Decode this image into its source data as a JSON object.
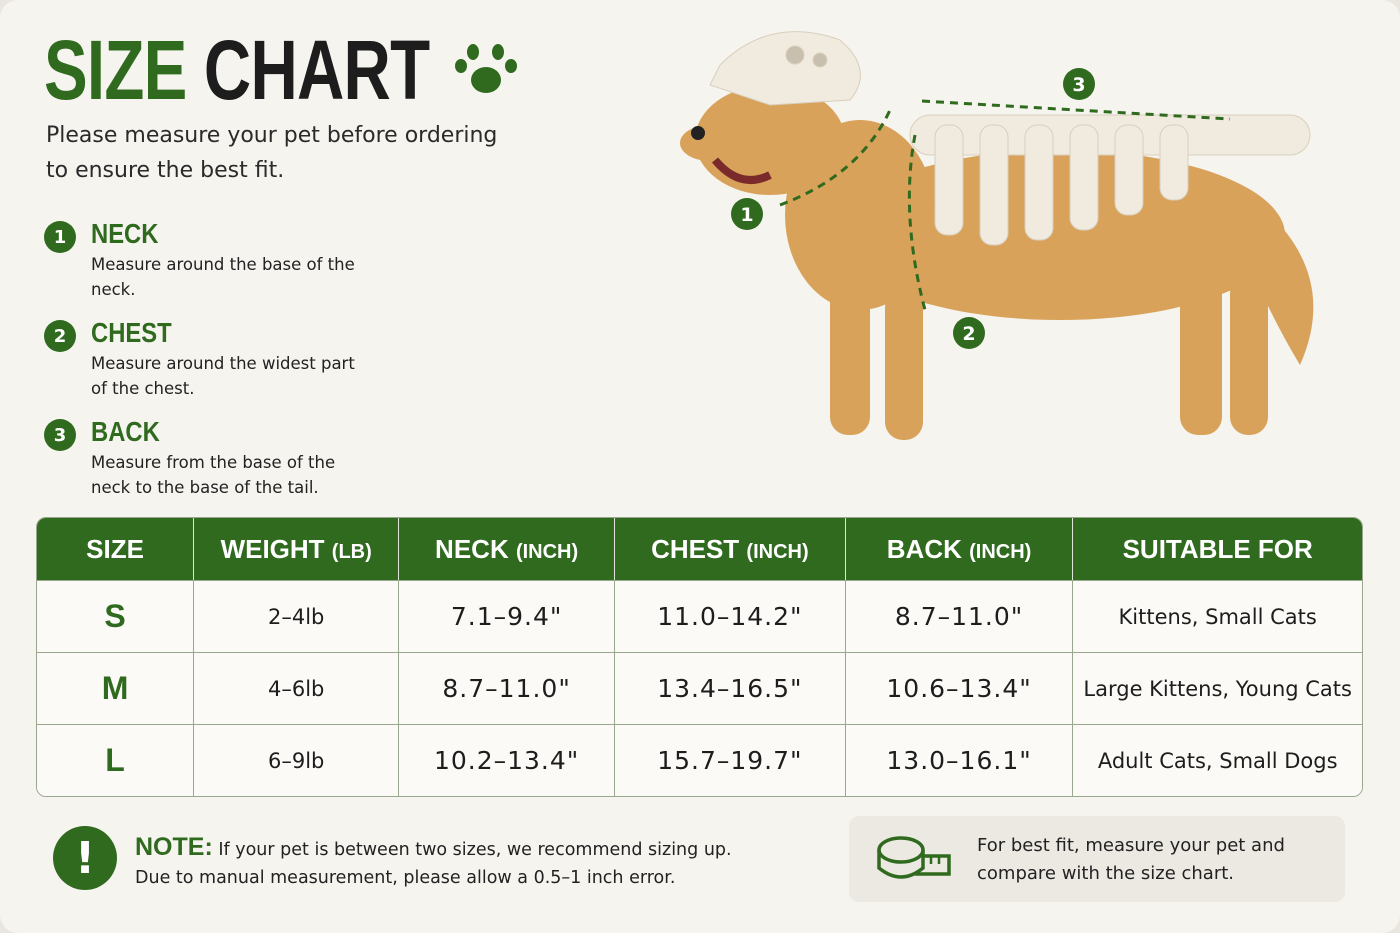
{
  "header": {
    "title_green": "SIZE",
    "title_black": "CHART",
    "intro": "Please measure your pet before ordering to ensure the best fit."
  },
  "steps": [
    {
      "number": "1",
      "title": "NECK",
      "text": "Measure around the base of the neck."
    },
    {
      "number": "2",
      "title": "CHEST",
      "text": "Measure around the widest part of the chest."
    },
    {
      "number": "3",
      "title": "BACK",
      "text": "Measure from the base of the neck to the base of the tail."
    }
  ],
  "table": {
    "header": [
      {
        "main": "SIZE"
      },
      {
        "main": "WEIGHT",
        "unit": "(LB)"
      },
      {
        "main": "NECK",
        "unit": "(INCH)"
      },
      {
        "main": "CHEST",
        "unit": "(INCH)"
      },
      {
        "main": "BACK",
        "unit": "(INCH)"
      },
      {
        "main": "SUITABLE FOR"
      }
    ],
    "rows": [
      [
        "S",
        "2–4lb",
        "7.1–9.4\"",
        "11.0–14.2\"",
        "8.7–11.0\"",
        "Kittens, Small Cats"
      ],
      [
        "M",
        "4–6lb",
        "8.7–11.0\"",
        "13.4–16.5\"",
        "10.6–13.4\"",
        "Large Kittens, Young Cats"
      ],
      [
        "L",
        "6–9lb",
        "10.2–13.4\"",
        "15.7–19.7\"",
        "13.0–16.1\"",
        "Adult Cats, Small Dogs"
      ]
    ]
  },
  "note": {
    "label": "NOTE:",
    "line1": "If your pet is between two sizes, we recommend sizing up.",
    "line2": "Due to manual measurement, please allow a 0.5–1 inch error."
  },
  "tip": {
    "text": "For best fit, measure your pet and compare with the size chart."
  }
}
